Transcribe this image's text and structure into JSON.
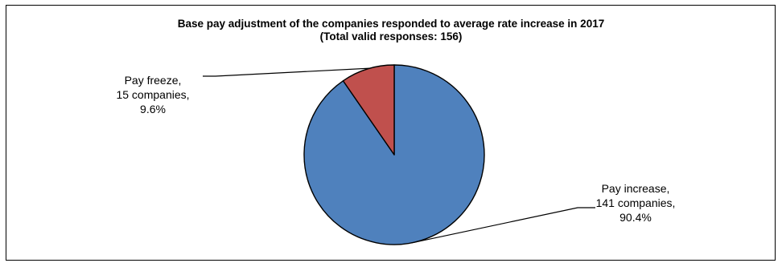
{
  "chart_data": {
    "type": "pie",
    "title_lines": [
      "Base pay adjustment of the companies responded to average rate increase in 2017",
      "(Total valid responses: 156)"
    ],
    "slices": [
      {
        "name": "Pay increase",
        "count": 141,
        "percent": 90.4,
        "color": "#4F81BD",
        "label_lines": [
          "Pay increase,",
          "141 companies,",
          "90.4%"
        ]
      },
      {
        "name": "Pay freeze",
        "count": 15,
        "percent": 9.6,
        "color": "#C0504D",
        "label_lines": [
          "Pay freeze,",
          "15 companies,",
          "9.6%"
        ]
      }
    ],
    "start_angle_deg": 0,
    "direction": "clockwise",
    "legend": "none"
  }
}
